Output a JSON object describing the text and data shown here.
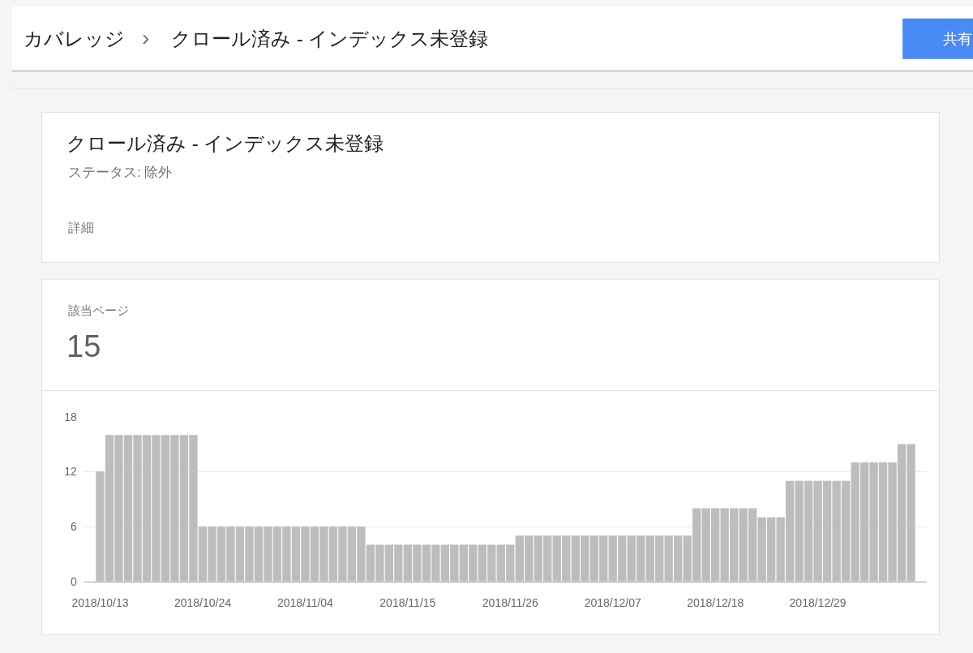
{
  "chart_data": {
    "type": "bar",
    "title": "クロール済み - インデックス未登録",
    "subtitle": "ステータス: 除外",
    "annotations": [
      "カバレッジ",
      "›",
      "クロール済み - インデックス未登録",
      "共有",
      "詳細",
      "該当ページ",
      "15"
    ],
    "x": [
      "2018-10-13",
      "2018-10-14",
      "2018-10-15",
      "2018-10-16",
      "2018-10-17",
      "2018-10-18",
      "2018-10-19",
      "2018-10-20",
      "2018-10-21",
      "2018-10-22",
      "2018-10-23",
      "2018-10-24",
      "2018-10-25",
      "2018-10-26",
      "2018-10-27",
      "2018-10-28",
      "2018-10-29",
      "2018-10-30",
      "2018-10-31",
      "2018-11-01",
      "2018-11-02",
      "2018-11-03",
      "2018-11-04",
      "2018-11-05",
      "2018-11-06",
      "2018-11-07",
      "2018-11-08",
      "2018-11-09",
      "2018-11-10",
      "2018-11-11",
      "2018-11-12",
      "2018-11-13",
      "2018-11-14",
      "2018-11-15",
      "2018-11-16",
      "2018-11-17",
      "2018-11-18",
      "2018-11-19",
      "2018-11-20",
      "2018-11-21",
      "2018-11-22",
      "2018-11-23",
      "2018-11-24",
      "2018-11-25",
      "2018-11-26",
      "2018-11-27",
      "2018-11-28",
      "2018-11-29",
      "2018-11-30",
      "2018-12-01",
      "2018-12-02",
      "2018-12-03",
      "2018-12-04",
      "2018-12-05",
      "2018-12-06",
      "2018-12-07",
      "2018-12-08",
      "2018-12-09",
      "2018-12-10",
      "2018-12-11",
      "2018-12-12",
      "2018-12-13",
      "2018-12-14",
      "2018-12-15",
      "2018-12-16",
      "2018-12-17",
      "2018-12-18",
      "2018-12-19",
      "2018-12-20",
      "2018-12-21",
      "2018-12-22",
      "2018-12-23",
      "2018-12-24",
      "2018-12-25",
      "2018-12-26",
      "2018-12-27",
      "2018-12-28",
      "2018-12-29",
      "2018-12-30",
      "2018-12-31",
      "2019-01-01",
      "2019-01-02",
      "2019-01-03",
      "2019-01-04",
      "2019-01-05",
      "2019-01-06",
      "2019-01-07",
      "2019-01-08"
    ],
    "values": [
      12,
      16,
      16,
      16,
      16,
      16,
      16,
      16,
      16,
      16,
      16,
      6,
      6,
      6,
      6,
      6,
      6,
      6,
      6,
      6,
      6,
      6,
      6,
      6,
      6,
      6,
      6,
      6,
      6,
      4,
      4,
      4,
      4,
      4,
      4,
      4,
      4,
      4,
      4,
      4,
      4,
      4,
      4,
      4,
      4,
      5,
      5,
      5,
      5,
      5,
      5,
      5,
      5,
      5,
      5,
      5,
      5,
      5,
      5,
      5,
      5,
      5,
      5,
      5,
      8,
      8,
      8,
      8,
      8,
      8,
      8,
      7,
      7,
      7,
      11,
      11,
      11,
      11,
      11,
      11,
      11,
      13,
      13,
      13,
      13,
      13,
      15,
      15
    ],
    "color": "#bdbdbd",
    "xlim": [
      "2018-10-11T07:00",
      "2019-01-09T16:00"
    ],
    "xticks": [
      {
        "value": "2018-10-13",
        "label": "2018/10/13"
      },
      {
        "value": "2018-10-24",
        "label": "2018/10/24"
      },
      {
        "value": "2018-11-04",
        "label": "2018/11/04"
      },
      {
        "value": "2018-11-15",
        "label": "2018/11/15"
      },
      {
        "value": "2018-11-26",
        "label": "2018/11/26"
      },
      {
        "value": "2018-12-07",
        "label": "2018/12/07"
      },
      {
        "value": "2018-12-18",
        "label": "2018/12/18"
      },
      {
        "value": "2018-12-29",
        "label": "2018/12/29"
      }
    ],
    "ylim": [
      0,
      18
    ],
    "yticks": [
      0,
      6,
      12,
      18
    ],
    "grid": "y"
  }
}
